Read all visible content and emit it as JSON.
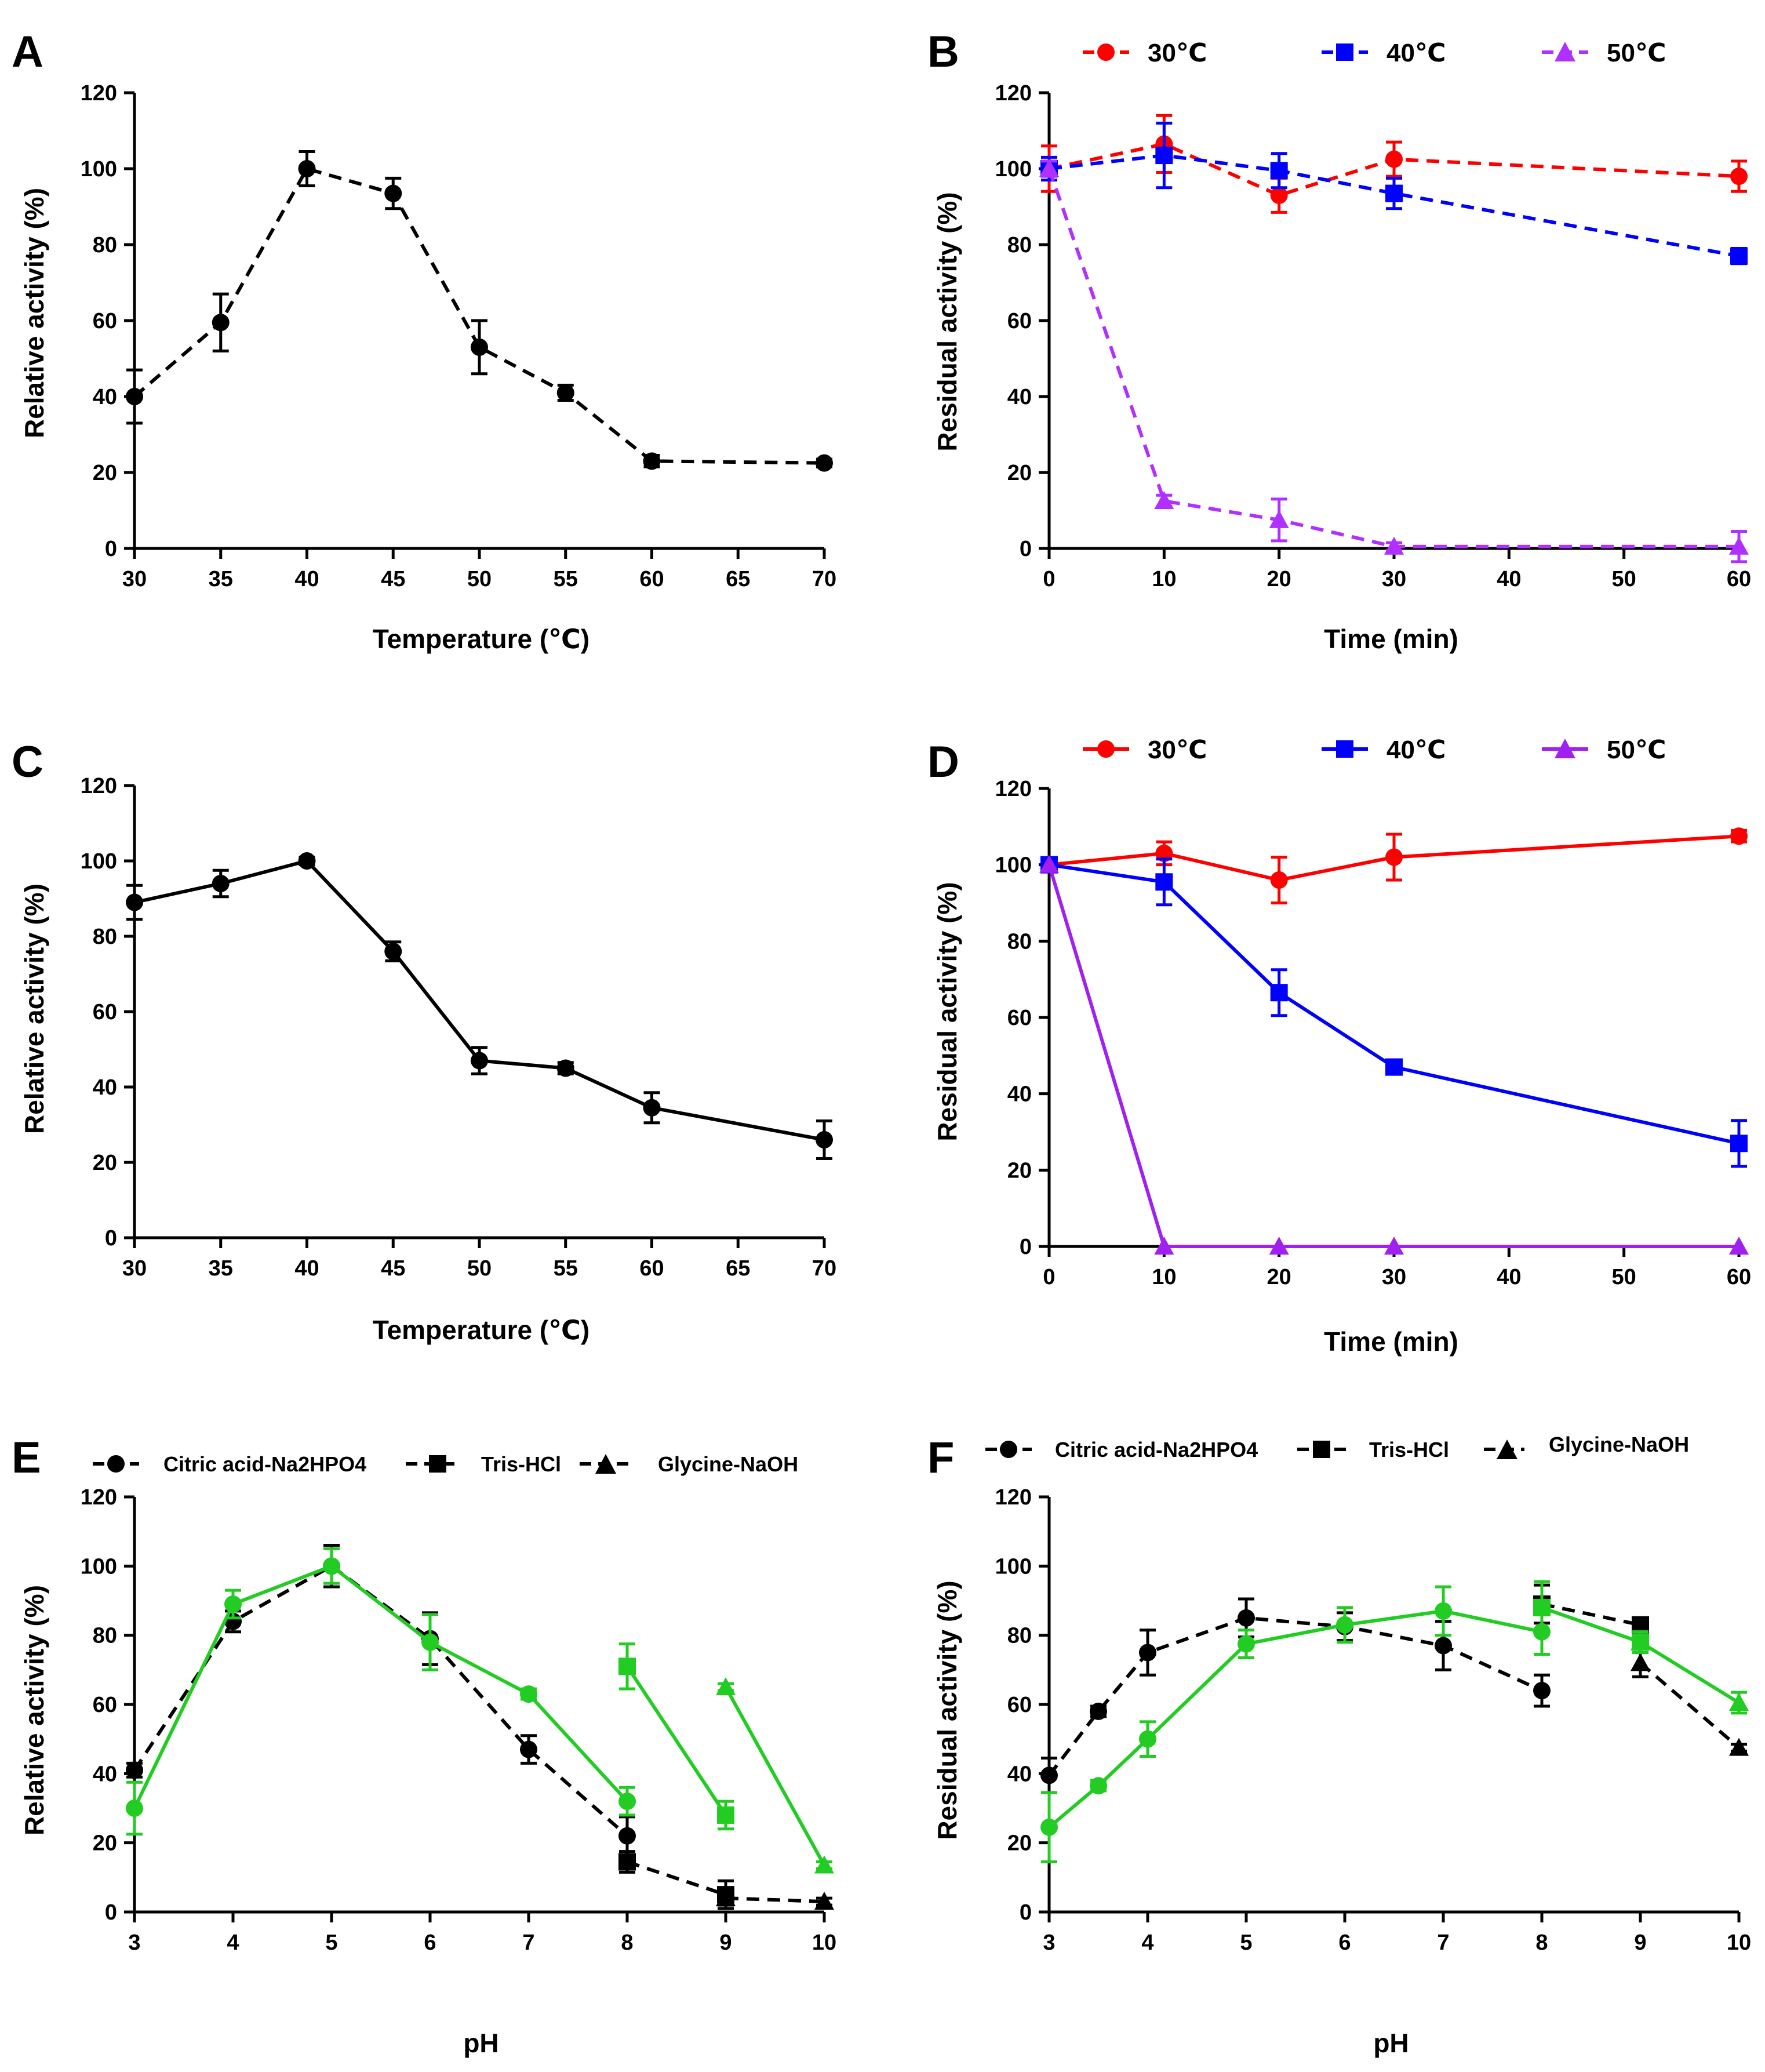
{
  "colors": {
    "axis": "#000000",
    "black": "#000000",
    "red": "#ff0000",
    "blue": "#0000ff",
    "purple": "#b030ff",
    "purple_solid": "#a020f0",
    "green": "#22cc22"
  },
  "chart_data": [
    {
      "panel": "A",
      "type": "line",
      "title": "",
      "xlabel": "Temperature (℃)",
      "ylabel": "Relative activity (%)",
      "xlim": [
        30,
        70
      ],
      "ylim": [
        0,
        120
      ],
      "xticks": [
        "30",
        "35",
        "40",
        "45",
        "50",
        "55",
        "60",
        "65",
        "70"
      ],
      "yticks": [
        "0",
        "20",
        "40",
        "60",
        "80",
        "100",
        "120"
      ],
      "series": [
        {
          "name": "",
          "color": "black",
          "dashed": true,
          "marker": "circle",
          "x": [
            30,
            35,
            40,
            45,
            50,
            55,
            60,
            70
          ],
          "values": [
            40,
            59.5,
            100,
            93.5,
            53,
            41,
            23,
            22.5
          ],
          "err": [
            7,
            7.5,
            4.5,
            4,
            7,
            2,
            1.5,
            1
          ]
        }
      ]
    },
    {
      "panel": "B",
      "type": "line",
      "title": "",
      "xlabel": "Time (min)",
      "ylabel": "Residual activity (%)",
      "xlim": [
        0,
        60
      ],
      "ylim": [
        0,
        120
      ],
      "xticks": [
        "0",
        "10",
        "20",
        "30",
        "40",
        "50",
        "60"
      ],
      "yticks": [
        "0",
        "20",
        "40",
        "60",
        "80",
        "100",
        "120"
      ],
      "legend": [
        "30℃",
        "40℃",
        "50℃"
      ],
      "series": [
        {
          "name": "30℃",
          "color": "red",
          "dashed": true,
          "marker": "circle",
          "x": [
            0,
            10,
            20,
            30,
            60
          ],
          "values": [
            100,
            106.5,
            93,
            102.5,
            98
          ],
          "err": [
            6,
            7.5,
            4.5,
            4.5,
            4
          ]
        },
        {
          "name": "40℃",
          "color": "blue",
          "dashed": true,
          "marker": "square",
          "x": [
            0,
            10,
            20,
            30,
            60
          ],
          "values": [
            100,
            103.5,
            99.5,
            93.5,
            77
          ],
          "err": [
            3,
            8.5,
            4.5,
            4,
            2
          ]
        },
        {
          "name": "50℃",
          "color": "purple",
          "dashed": true,
          "marker": "triangle",
          "x": [
            0,
            10,
            20,
            30,
            60
          ],
          "values": [
            100,
            12.5,
            7.5,
            0.5,
            0.5
          ],
          "err": [
            2,
            1.5,
            5.5,
            1,
            4
          ]
        }
      ]
    },
    {
      "panel": "C",
      "type": "line",
      "title": "",
      "xlabel": "Temperature (℃)",
      "ylabel": "Relative activity (%)",
      "xlim": [
        30,
        70
      ],
      "ylim": [
        0,
        120
      ],
      "xticks": [
        "30",
        "35",
        "40",
        "45",
        "50",
        "55",
        "60",
        "65",
        "70"
      ],
      "yticks": [
        "0",
        "20",
        "40",
        "60",
        "80",
        "100",
        "120"
      ],
      "series": [
        {
          "name": "",
          "color": "black",
          "dashed": false,
          "marker": "circle",
          "x": [
            30,
            35,
            40,
            45,
            50,
            55,
            60,
            70
          ],
          "values": [
            89,
            94,
            100,
            76,
            47,
            45,
            34.5,
            26
          ],
          "err": [
            4.5,
            3.5,
            1,
            2.5,
            3.5,
            1.5,
            4,
            5
          ]
        }
      ]
    },
    {
      "panel": "D",
      "type": "line",
      "title": "",
      "xlabel": "Time (min)",
      "ylabel": "Residual activity (%)",
      "xlim": [
        0,
        60
      ],
      "ylim": [
        0,
        120
      ],
      "xticks": [
        "0",
        "10",
        "20",
        "30",
        "40",
        "50",
        "60"
      ],
      "yticks": [
        "0",
        "20",
        "40",
        "60",
        "80",
        "100",
        "120"
      ],
      "legend": [
        "30℃",
        "40℃",
        "50℃"
      ],
      "series": [
        {
          "name": "30℃",
          "color": "red",
          "dashed": false,
          "marker": "circle",
          "x": [
            0,
            10,
            20,
            30,
            60
          ],
          "values": [
            100,
            103,
            96,
            102,
            107.5
          ],
          "err": [
            1.5,
            3,
            6,
            6,
            1.5
          ]
        },
        {
          "name": "40℃",
          "color": "blue",
          "dashed": false,
          "marker": "square",
          "x": [
            0,
            10,
            20,
            30,
            60
          ],
          "values": [
            100,
            95.5,
            66.5,
            47,
            27
          ],
          "err": [
            1,
            6,
            6,
            1.5,
            6
          ]
        },
        {
          "name": "50℃",
          "color": "purple_solid",
          "dashed": false,
          "marker": "triangle",
          "x": [
            0,
            10,
            20,
            30,
            60
          ],
          "values": [
            100,
            0,
            0,
            0,
            0
          ],
          "err": [
            0,
            0,
            0,
            0,
            0
          ]
        }
      ]
    },
    {
      "panel": "E",
      "type": "line",
      "title": "",
      "xlabel": "pH",
      "ylabel": "Relative activity (%)",
      "xlim": [
        3,
        10
      ],
      "ylim": [
        0,
        120
      ],
      "xticks": [
        "3",
        "4",
        "5",
        "6",
        "7",
        "8",
        "9",
        "10"
      ],
      "yticks": [
        "0",
        "20",
        "40",
        "60",
        "80",
        "100",
        "120"
      ],
      "legend": [
        "Citric acid-Na2HPO4",
        "Tris-HCl",
        "Glycine-NaOH"
      ],
      "series": [
        {
          "name": "Citric acid-Na2HPO4",
          "color": "black",
          "dashed": true,
          "marker": "circle",
          "x": [
            3,
            4,
            5,
            6,
            7,
            8
          ],
          "values": [
            41,
            84,
            100,
            79,
            47,
            22
          ],
          "err": [
            2,
            3,
            6,
            7.5,
            4,
            5.5
          ]
        },
        {
          "name": "Tris-HCl",
          "color": "black",
          "dashed": true,
          "marker": "square",
          "x": [
            8,
            9
          ],
          "values": [
            14.5,
            5
          ],
          "err": [
            3,
            4
          ]
        },
        {
          "name": "Glycine-NaOH",
          "color": "black",
          "dashed": true,
          "marker": "triangle",
          "x": [
            9,
            10
          ],
          "values": [
            4,
            3
          ],
          "err": [
            2,
            1
          ]
        },
        {
          "name": "Citric acid-Na2HPO4",
          "color": "green",
          "dashed": false,
          "marker": "circle",
          "x": [
            3,
            4,
            5,
            6,
            7,
            8
          ],
          "values": [
            30,
            89,
            100,
            78,
            63,
            32
          ],
          "err": [
            7.5,
            4,
            5,
            8,
            1.5,
            4
          ]
        },
        {
          "name": "Tris-HCl",
          "color": "green",
          "dashed": false,
          "marker": "square",
          "x": [
            8,
            9
          ],
          "values": [
            71,
            28
          ],
          "err": [
            6.5,
            4
          ]
        },
        {
          "name": "Glycine-NaOH",
          "color": "green",
          "dashed": false,
          "marker": "triangle",
          "x": [
            9,
            10
          ],
          "values": [
            65,
            13.5
          ],
          "err": [
            1,
            1
          ]
        }
      ]
    },
    {
      "panel": "F",
      "type": "line",
      "title": "",
      "xlabel": "pH",
      "ylabel": "Residual activity (%)",
      "xlim": [
        3,
        10
      ],
      "ylim": [
        0,
        120
      ],
      "xticks": [
        "3",
        "4",
        "5",
        "6",
        "7",
        "8",
        "9",
        "10"
      ],
      "yticks": [
        "0",
        "20",
        "40",
        "60",
        "80",
        "100",
        "120"
      ],
      "legend": [
        "Citric acid-Na2HPO4",
        "Tris-HCl",
        "Glycine-NaOH"
      ],
      "series": [
        {
          "name": "Citric acid-Na2HPO4",
          "color": "black",
          "dashed": true,
          "marker": "circle",
          "x": [
            3,
            3.5,
            4,
            5,
            6,
            7,
            8
          ],
          "values": [
            39.5,
            58,
            75,
            85,
            82.5,
            77,
            64
          ],
          "err": [
            5,
            1.5,
            6.5,
            5.5,
            4,
            7,
            4.5
          ]
        },
        {
          "name": "Tris-HCl",
          "color": "black",
          "dashed": true,
          "marker": "square",
          "x": [
            8,
            9
          ],
          "values": [
            89,
            83
          ],
          "err": [
            5.5,
            2
          ]
        },
        {
          "name": "Glycine-NaOH",
          "color": "black",
          "dashed": true,
          "marker": "triangle",
          "x": [
            9,
            10
          ],
          "values": [
            72,
            47.5
          ],
          "err": [
            4,
            1
          ]
        },
        {
          "name": "Citric acid-Na2HPO4",
          "color": "green",
          "dashed": false,
          "marker": "circle",
          "x": [
            3,
            3.5,
            4,
            5,
            6,
            7,
            8
          ],
          "values": [
            24.5,
            36.5,
            50,
            77.5,
            83,
            87,
            81
          ],
          "err": [
            10,
            1.5,
            5,
            4,
            5,
            7,
            6.5
          ]
        },
        {
          "name": "Tris-HCl",
          "color": "green",
          "dashed": false,
          "marker": "square",
          "x": [
            8,
            9
          ],
          "values": [
            88,
            78
          ],
          "err": [
            7.5,
            3
          ]
        },
        {
          "name": "Glycine-NaOH",
          "color": "green",
          "dashed": false,
          "marker": "triangle",
          "x": [
            9,
            10
          ],
          "values": [
            78,
            60.5
          ],
          "err": [
            3,
            3
          ]
        }
      ]
    }
  ]
}
